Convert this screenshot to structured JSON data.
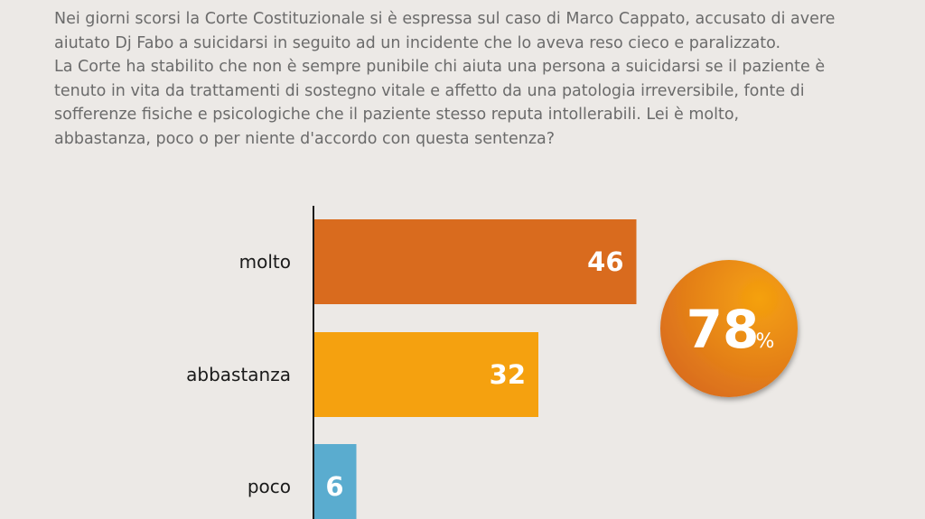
{
  "question": {
    "lines": [
      "Nei giorni scorsi la Corte Costituzionale si è espressa sul caso di Marco Cappato, accusato di avere",
      "aiutato Dj Fabo a suicidarsi in seguito ad un incidente che lo aveva reso cieco e paralizzato.",
      "La Corte ha stabilito che non è sempre punibile chi aiuta una persona a suicidarsi se il paziente è",
      "tenuto in vita da trattamenti di sostegno vitale e affetto da una patologia irreversibile, fonte di",
      "sofferenze fisiche e psicologiche che il paziente stesso reputa intollerabili. Lei è molto,",
      "abbastanza, poco o per niente d'accordo con questa sentenza?"
    ]
  },
  "chart_data": {
    "type": "bar",
    "orientation": "horizontal",
    "categories": [
      "molto",
      "abbastanza",
      "poco"
    ],
    "values": [
      46,
      32,
      6
    ],
    "colors": [
      "#d96b1e",
      "#f5a10f",
      "#5aaccf"
    ],
    "xlim": [
      0,
      100
    ],
    "grid": false,
    "legend": "none",
    "summary": {
      "value": "78",
      "unit": "%",
      "colors": [
        "#d96b1e",
        "#f5a10f"
      ]
    }
  }
}
